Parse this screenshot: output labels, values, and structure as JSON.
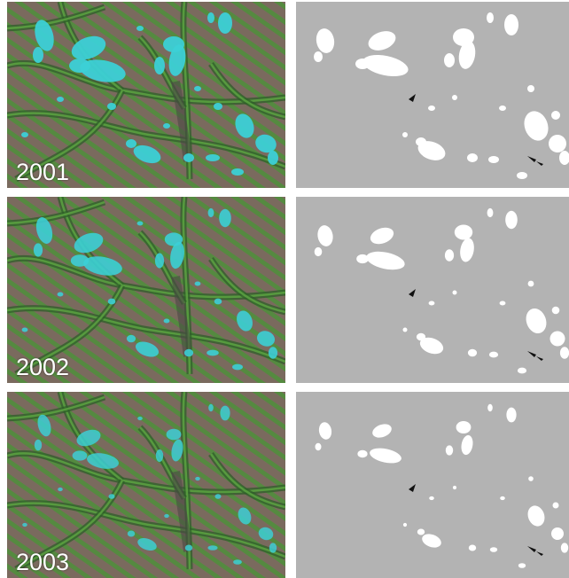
{
  "figure": {
    "rows": [
      {
        "year": "2001",
        "glacier_level": 1.0
      },
      {
        "year": "2002",
        "glacier_level": 0.85
      },
      {
        "year": "2003",
        "glacier_level": 0.7
      }
    ],
    "colors": {
      "vegetation": "#4f8f3a",
      "terrain": "#7a6a5e",
      "ridge": "#2f5f2a",
      "valley": "#5aa040",
      "ice": "#3cd0d6",
      "mask_background": "#b3b3b3",
      "mask_glacier": "#ffffff",
      "mask_shadow": "#111111",
      "label": "#ffffff"
    }
  }
}
